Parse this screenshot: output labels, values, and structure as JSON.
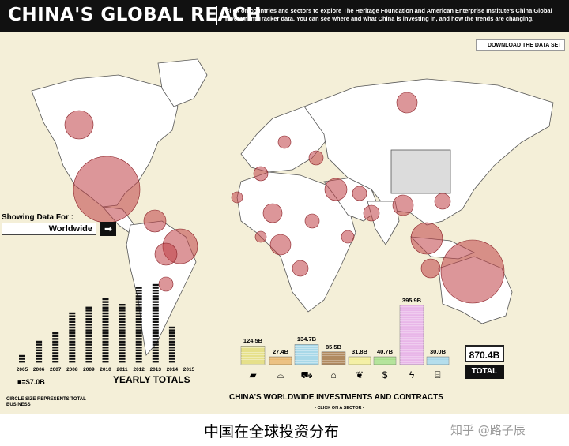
{
  "header": {
    "title": "CHINA'S GLOBAL REACH",
    "description": "Click on countries and sectors to explore The Heritage Foundation and American Enterprise Institute's China Global Investment Tracker data. You can see where and what China is investing in, and how the trends are changing."
  },
  "download_label": "DOWNLOAD THE DATA SET",
  "showing": {
    "label": "Showing Data For :",
    "region": "Worldwide",
    "arrow": "➡"
  },
  "yearly_chart": {
    "years": [
      "2005",
      "2006",
      "2007",
      "2008",
      "2009",
      "2010",
      "2011",
      "2012",
      "2013",
      "2014",
      "2015"
    ],
    "values": [
      3,
      8,
      11,
      18,
      20,
      23,
      21,
      27,
      28,
      13,
      0
    ],
    "legend": "■=$7.0B",
    "title": "YEARLY TOTALS",
    "note": "CIRCLE SIZE REPRESENTS TOTAL BUSINESS"
  },
  "sectors": {
    "title": "CHINA'S WORLDWIDE INVESTMENTS AND CONTRACTS",
    "subtitle": "• CLICK ON A SECTOR •",
    "items": [
      {
        "name": "metals",
        "value_label": "124.5B",
        "value": 124.5,
        "color": "#e6e08a",
        "icon": "ingot-icon",
        "glyph": "▰"
      },
      {
        "name": "agriculture",
        "value_label": "27.4B",
        "value": 27.4,
        "color": "#e9b86f",
        "icon": "food-icon",
        "glyph": "⌓"
      },
      {
        "name": "transport",
        "value_label": "134.7B",
        "value": 134.7,
        "color": "#a8d8e8",
        "icon": "transport-icon",
        "glyph": "⛟"
      },
      {
        "name": "real estate",
        "value_label": "85.5B",
        "value": 85.5,
        "color": "#b08a60",
        "icon": "house-icon",
        "glyph": "⌂"
      },
      {
        "name": "technology",
        "value_label": "31.8B",
        "value": 31.8,
        "color": "#f2ee96",
        "icon": "wheat-icon",
        "glyph": "❦"
      },
      {
        "name": "finance",
        "value_label": "40.7B",
        "value": 40.7,
        "color": "#a8e08a",
        "icon": "dollar-icon",
        "glyph": "$"
      },
      {
        "name": "energy",
        "value_label": "395.9B",
        "value": 395.9,
        "color": "#e8b6e8",
        "icon": "lightning-icon",
        "glyph": "ϟ"
      },
      {
        "name": "chemicals",
        "value_label": "30.0B",
        "value": 30.0,
        "color": "#a8d8e8",
        "icon": "factory-icon",
        "glyph": "⌸"
      }
    ],
    "total_value": "870.4B",
    "total_label": "TOTAL"
  },
  "caption": "中国在全球投资分布",
  "watermark": "知乎 @路子辰",
  "colors": {
    "circle": "#c04046",
    "land": "#ffffff",
    "sea": "#f4efd8",
    "china": "#dcdcdc"
  }
}
